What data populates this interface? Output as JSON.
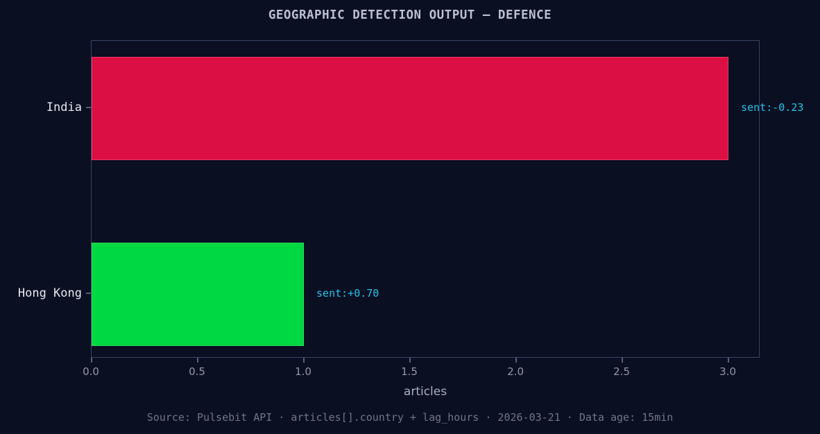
{
  "figure": {
    "footer": "Source: Pulsebit API · articles[].country + lag_hours · 2026-03-21 · Data age: 15min"
  },
  "chart_data": {
    "type": "bar",
    "orientation": "horizontal",
    "title": "GEOGRAPHIC DETECTION OUTPUT — DEFENCE",
    "categories": [
      "India",
      "Hong Kong"
    ],
    "values": [
      3,
      1
    ],
    "series": [
      {
        "name": "articles",
        "values": [
          3,
          1
        ]
      }
    ],
    "annotations": [
      "sent:-0.23",
      "sent:+0.70"
    ],
    "annotation_color": "#24c4e8",
    "bar_colors": [
      "#dc0f44",
      "#00d843"
    ],
    "bar_edge_colors": [
      "#e63a63",
      "#2be25c"
    ],
    "xlabel": "articles",
    "ylabel": "",
    "xlim": [
      0,
      3.15
    ],
    "xticks": [
      0.0,
      0.5,
      1.0,
      1.5,
      2.0,
      2.5,
      3.0
    ],
    "xtick_labels": [
      "0.0",
      "0.5",
      "1.0",
      "1.5",
      "2.0",
      "2.5",
      "3.0"
    ],
    "grid": false,
    "legend": null,
    "background_color": "#0a0f22",
    "spine_color": "#3a4563",
    "title_color": "#b9c0d0",
    "ytick_label_color": "#e8e9f0",
    "xtick_label_color": "#9298ab"
  }
}
